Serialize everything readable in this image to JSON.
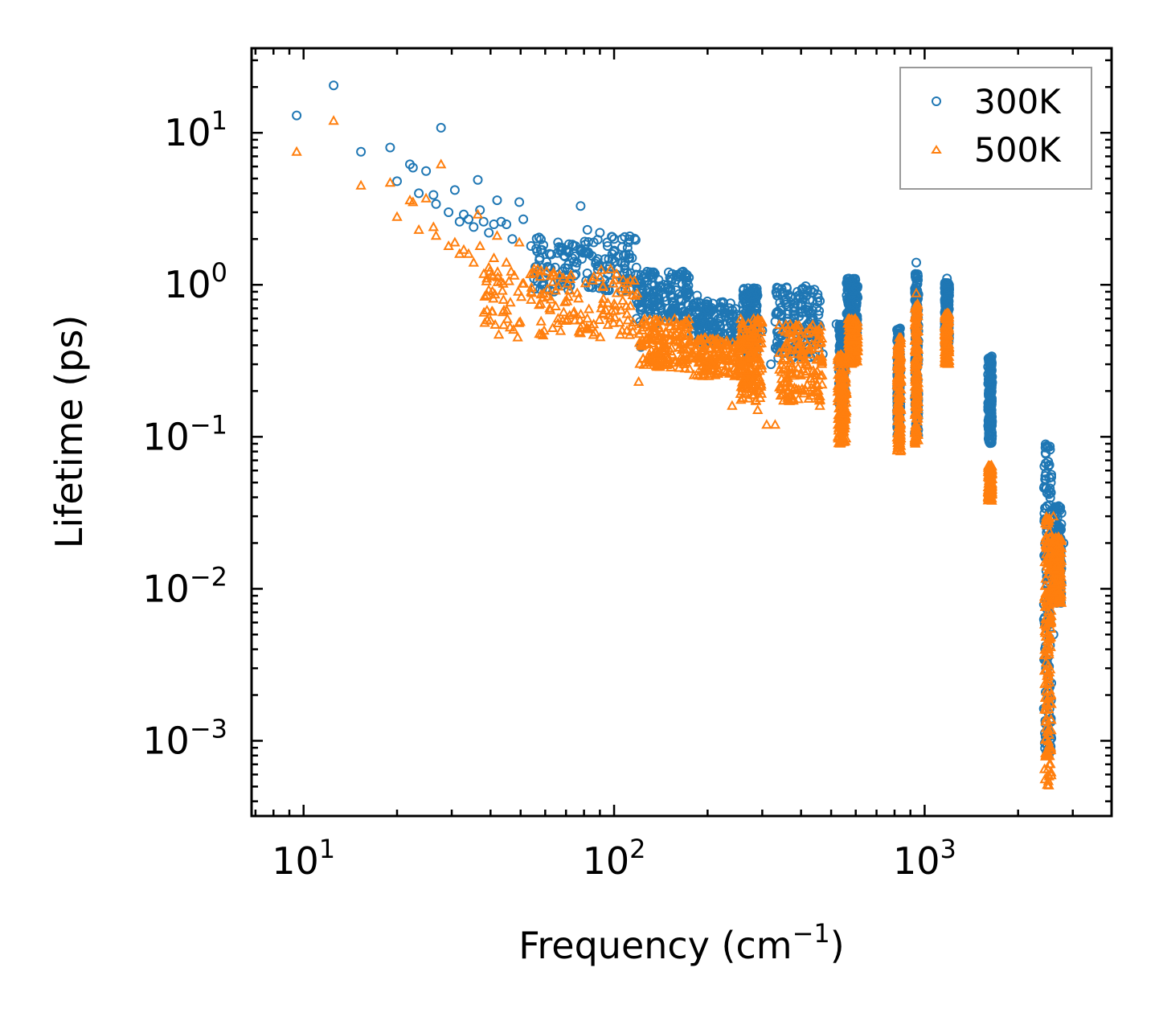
{
  "chart_data": {
    "type": "scatter",
    "xscale": "log",
    "yscale": "log",
    "xlabel": "Frequency (cm",
    "xlabel_exp": "−1",
    "xlabel_suffix": ")",
    "ylabel": "Lifetime (ps)",
    "xlim": [
      6.8,
      4000
    ],
    "ylim": [
      0.00032,
      36
    ],
    "xticks": [
      {
        "value": 10,
        "base": "10",
        "exp": "1"
      },
      {
        "value": 100,
        "base": "10",
        "exp": "2"
      },
      {
        "value": 1000,
        "base": "10",
        "exp": "3"
      }
    ],
    "yticks": [
      {
        "value": 10,
        "base": "10",
        "exp": "1"
      },
      {
        "value": 1,
        "base": "10",
        "exp": "0"
      },
      {
        "value": 0.1,
        "base": "10",
        "exp": "−1"
      },
      {
        "value": 0.01,
        "base": "10",
        "exp": "−2"
      },
      {
        "value": 0.001,
        "base": "10",
        "exp": "−3"
      }
    ],
    "legend_position": "top-right",
    "series": [
      {
        "name": "300K",
        "marker": "circle",
        "color": "#1f77b4",
        "points": [
          [
            9.5,
            13.0
          ],
          [
            12.5,
            20.5
          ],
          [
            15.3,
            7.5
          ],
          [
            19.0,
            8.0
          ],
          [
            20.0,
            4.8
          ],
          [
            22.0,
            6.2
          ],
          [
            22.5,
            5.9
          ],
          [
            23.5,
            4.0
          ],
          [
            24.8,
            5.6
          ],
          [
            26.2,
            3.9
          ],
          [
            26.7,
            3.4
          ],
          [
            27.7,
            10.8
          ],
          [
            29.3,
            3.0
          ],
          [
            30.7,
            4.2
          ],
          [
            31.8,
            2.6
          ],
          [
            32.8,
            2.9
          ],
          [
            34.0,
            2.7
          ],
          [
            35.3,
            2.4
          ],
          [
            36.4,
            4.9
          ],
          [
            37.0,
            3.1
          ],
          [
            38.0,
            2.6
          ],
          [
            39.5,
            2.2
          ],
          [
            41.0,
            2.5
          ],
          [
            42.0,
            3.6
          ],
          [
            43.3,
            2.6
          ],
          [
            45.0,
            2.5
          ],
          [
            47.0,
            2.0
          ],
          [
            49.5,
            3.5
          ],
          [
            51.0,
            2.7
          ],
          [
            54.0,
            1.8
          ],
          [
            58.0,
            1.7
          ],
          [
            62.0,
            1.6
          ],
          [
            66.0,
            1.9
          ],
          [
            70.0,
            1.7
          ],
          [
            74.0,
            1.8
          ],
          [
            78.0,
            3.3
          ],
          [
            82.0,
            2.3
          ],
          [
            86.0,
            1.9
          ],
          [
            90.0,
            2.2
          ],
          [
            95.0,
            1.9
          ],
          [
            100.0,
            2.0
          ],
          [
            106.0,
            2.0
          ],
          [
            112.0,
            1.5
          ],
          [
            118.0,
            1.3
          ],
          [
            122.0,
            0.39
          ],
          [
            125.0,
            1.1
          ],
          [
            132.0,
            1.0
          ],
          [
            140.0,
            0.8
          ],
          [
            150.0,
            0.7
          ],
          [
            160.0,
            0.6
          ],
          [
            175.0,
            0.55
          ],
          [
            185.0,
            0.85
          ],
          [
            200.0,
            0.55
          ],
          [
            215.0,
            0.45
          ],
          [
            230.0,
            0.65
          ],
          [
            245.0,
            0.4
          ],
          [
            260.0,
            0.75
          ],
          [
            270.0,
            0.95
          ],
          [
            285.0,
            0.6
          ],
          [
            300.0,
            0.5
          ],
          [
            320.0,
            0.3
          ],
          [
            345.0,
            0.4
          ],
          [
            360.0,
            0.95
          ],
          [
            380.0,
            0.7
          ],
          [
            400.0,
            0.75
          ],
          [
            420.0,
            0.55
          ],
          [
            445.0,
            0.45
          ],
          [
            470.0,
            0.35
          ],
          [
            520.0,
            0.55
          ],
          [
            570.0,
            1.1
          ],
          [
            600.0,
            0.95
          ],
          [
            820.0,
            0.5
          ],
          [
            940.0,
            1.4
          ],
          [
            1180.0,
            1.1
          ],
          [
            1620.0,
            0.33
          ],
          [
            2450.0,
            0.085
          ],
          [
            2500.0,
            0.02
          ],
          [
            2550.0,
            0.05
          ],
          [
            2600.0,
            0.005
          ],
          [
            2700.0,
            0.035
          ],
          [
            2800.0,
            0.02
          ]
        ],
        "bands": [
          [
            55,
            118,
            0.9,
            2.1
          ],
          [
            118,
            175,
            0.55,
            1.25
          ],
          [
            175,
            255,
            0.42,
            0.78
          ],
          [
            260,
            290,
            0.35,
            0.95
          ],
          [
            330,
            460,
            0.33,
            0.98
          ],
          [
            530,
            555,
            0.15,
            0.55
          ],
          [
            560,
            610,
            0.45,
            1.1
          ],
          [
            815,
            835,
            0.1,
            0.52
          ],
          [
            930,
            955,
            0.1,
            1.2
          ],
          [
            1160,
            1200,
            0.4,
            1.05
          ],
          [
            1600,
            1650,
            0.09,
            0.34
          ],
          [
            2420,
            2560,
            0.0008,
            0.09
          ],
          [
            2600,
            2760,
            0.008,
            0.035
          ]
        ]
      },
      {
        "name": "500K",
        "marker": "triangle",
        "color": "#ff7f0e",
        "points": [
          [
            9.5,
            7.5
          ],
          [
            12.5,
            12.0
          ],
          [
            15.3,
            4.5
          ],
          [
            19.0,
            4.7
          ],
          [
            20.0,
            2.8
          ],
          [
            22.0,
            3.6
          ],
          [
            22.5,
            3.5
          ],
          [
            23.5,
            2.3
          ],
          [
            24.8,
            3.7
          ],
          [
            26.2,
            2.4
          ],
          [
            26.7,
            2.1
          ],
          [
            27.7,
            6.2
          ],
          [
            29.3,
            1.8
          ],
          [
            30.7,
            1.9
          ],
          [
            31.8,
            1.6
          ],
          [
            32.8,
            1.7
          ],
          [
            34.0,
            1.6
          ],
          [
            35.3,
            1.4
          ],
          [
            36.4,
            2.9
          ],
          [
            37.0,
            1.8
          ],
          [
            39.5,
            1.3
          ],
          [
            41.0,
            1.5
          ],
          [
            42.0,
            2.1
          ],
          [
            45.0,
            1.4
          ],
          [
            49.5,
            1.9
          ],
          [
            54.0,
            0.9
          ],
          [
            58.0,
            0.75
          ],
          [
            62.0,
            0.7
          ],
          [
            66.0,
            0.6
          ],
          [
            70.0,
            0.58
          ],
          [
            74.0,
            0.65
          ],
          [
            78.0,
            0.52
          ],
          [
            82.0,
            0.6
          ],
          [
            86.0,
            0.55
          ],
          [
            92.0,
            0.65
          ],
          [
            100.0,
            0.75
          ],
          [
            110.0,
            0.5
          ],
          [
            120.0,
            0.23
          ],
          [
            130.0,
            0.35
          ],
          [
            150.0,
            0.3
          ],
          [
            175.0,
            0.28
          ],
          [
            200.0,
            0.27
          ],
          [
            230.0,
            0.32
          ],
          [
            240.0,
            0.16
          ],
          [
            260.0,
            0.18
          ],
          [
            290.0,
            0.15
          ],
          [
            310.0,
            0.12
          ],
          [
            330.0,
            0.12
          ],
          [
            360.0,
            0.4
          ],
          [
            400.0,
            0.35
          ],
          [
            460.0,
            0.16
          ],
          [
            540.0,
            0.1
          ],
          [
            600.0,
            0.5
          ],
          [
            830.0,
            0.085
          ],
          [
            940.0,
            0.88
          ],
          [
            1180.0,
            0.65
          ],
          [
            1620.0,
            0.045
          ],
          [
            2500.0,
            0.0006
          ],
          [
            2600.0,
            0.03
          ],
          [
            2750.0,
            0.01
          ]
        ],
        "bands": [
          [
            38,
            120,
            0.45,
            1.3
          ],
          [
            120,
            175,
            0.28,
            0.6
          ],
          [
            175,
            255,
            0.25,
            0.45
          ],
          [
            255,
            300,
            0.17,
            0.6
          ],
          [
            340,
            470,
            0.17,
            0.55
          ],
          [
            525,
            560,
            0.09,
            0.35
          ],
          [
            565,
            610,
            0.3,
            0.6
          ],
          [
            815,
            840,
            0.08,
            0.45
          ],
          [
            930,
            955,
            0.09,
            0.75
          ],
          [
            1160,
            1200,
            0.3,
            0.65
          ],
          [
            1600,
            1650,
            0.038,
            0.065
          ],
          [
            2430,
            2560,
            0.0005,
            0.03
          ],
          [
            2580,
            2760,
            0.008,
            0.022
          ]
        ]
      }
    ]
  }
}
